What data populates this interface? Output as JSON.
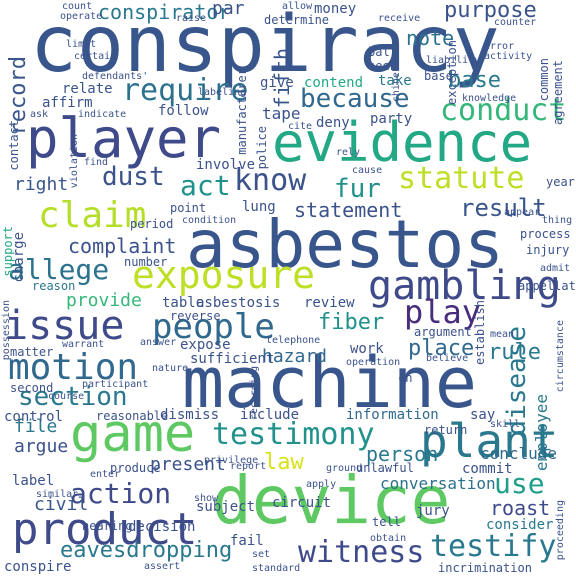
{
  "words": [
    {
      "text": "conspiracy",
      "color": "#39568c"
    },
    {
      "text": "asbestos",
      "color": "#39568c"
    },
    {
      "text": "machine",
      "color": "#39568c"
    },
    {
      "text": "device",
      "color": "#5ec962"
    },
    {
      "text": "evidence",
      "color": "#22a884"
    },
    {
      "text": "player",
      "color": "#3e4a89"
    },
    {
      "text": "game",
      "color": "#5ec962"
    },
    {
      "text": "product",
      "color": "#3e4a89"
    },
    {
      "text": "plant",
      "color": "#2a788e"
    },
    {
      "text": "exposure",
      "color": "#bddf26"
    },
    {
      "text": "gambling",
      "color": "#3e4a89"
    },
    {
      "text": "issue",
      "color": "#3e4a89"
    },
    {
      "text": "people",
      "color": "#31688e"
    },
    {
      "text": "motion",
      "color": "#31688e"
    },
    {
      "text": "claim",
      "color": "#b5de2b"
    },
    {
      "text": "testimony",
      "color": "#21918c"
    },
    {
      "text": "witness",
      "color": "#3e4a89"
    },
    {
      "text": "testify",
      "color": "#2a788e"
    },
    {
      "text": "know",
      "color": "#3b528b"
    },
    {
      "text": "require",
      "color": "#2c728e"
    },
    {
      "text": "conduct",
      "color": "#35b779"
    },
    {
      "text": "statute",
      "color": "#bddf26"
    },
    {
      "text": "because",
      "color": "#31688e"
    },
    {
      "text": "allege",
      "color": "#2c728e"
    },
    {
      "text": "action",
      "color": "#3e4a89"
    },
    {
      "text": "section",
      "color": "#2a788e"
    },
    {
      "text": "play",
      "color": "#472d7b"
    },
    {
      "text": "result",
      "color": "#39568c"
    },
    {
      "text": "record",
      "color": "#39568c"
    },
    {
      "text": "act",
      "color": "#21918c"
    },
    {
      "text": "dust",
      "color": "#3b528b"
    },
    {
      "text": "fur",
      "color": "#21918c"
    },
    {
      "text": "law",
      "color": "#d8e219"
    },
    {
      "text": "rule",
      "color": "#2a788e"
    },
    {
      "text": "fiber",
      "color": "#21918c"
    },
    {
      "text": "disease",
      "color": "#2a788e"
    },
    {
      "text": "use",
      "color": "#1f9e89"
    },
    {
      "text": "roast",
      "color": "#3e4a89"
    },
    {
      "text": "person",
      "color": "#2a788e"
    },
    {
      "text": "place",
      "color": "#31688e"
    },
    {
      "text": "eavesdropping",
      "color": "#2a788e"
    },
    {
      "text": "complaint",
      "color": "#3b528b"
    },
    {
      "text": "provide",
      "color": "#35b779"
    },
    {
      "text": "statement",
      "color": "#3b528b"
    },
    {
      "text": "purpose",
      "color": "#3b528b"
    },
    {
      "text": "conspirator",
      "color": "#2a788e"
    },
    {
      "text": "note",
      "color": "#2c728e"
    },
    {
      "text": "fifth",
      "color": "#39568c"
    },
    {
      "text": "base",
      "color": "#2a788e"
    },
    {
      "text": "present",
      "color": "#3b528b"
    },
    {
      "text": "argue",
      "color": "#3b528b"
    },
    {
      "text": "file",
      "color": "#2a788e"
    },
    {
      "text": "civil",
      "color": "#39568c"
    },
    {
      "text": "hazard",
      "color": "#31688e"
    },
    {
      "text": "employee",
      "color": "#2a788e"
    },
    {
      "text": "conclude",
      "color": "#31688e"
    },
    {
      "text": "consider",
      "color": "#2a788e"
    },
    {
      "text": "conversation",
      "color": "#2c728e"
    },
    {
      "text": "asbestosis",
      "color": "#3b528b"
    },
    {
      "text": "review",
      "color": "#3b528b"
    },
    {
      "text": "tape",
      "color": "#3b528b"
    },
    {
      "text": "deny",
      "color": "#3b528b"
    },
    {
      "text": "party",
      "color": "#3b528b"
    },
    {
      "text": "contend",
      "color": "#22a884"
    },
    {
      "text": "take",
      "color": "#2a788e"
    },
    {
      "text": "right",
      "color": "#39568c"
    },
    {
      "text": "charge",
      "color": "#3b528b"
    },
    {
      "text": "label",
      "color": "#3b528b"
    },
    {
      "text": "circuit",
      "color": "#3b528b"
    },
    {
      "text": "information",
      "color": "#31688e"
    },
    {
      "text": "incrimination",
      "color": "#3b528b"
    },
    {
      "text": "conspire",
      "color": "#3b528b"
    },
    {
      "text": "lung",
      "color": "#3b528b"
    },
    {
      "text": "par",
      "color": "#3b528b"
    },
    {
      "text": "money",
      "color": "#3b528b"
    },
    {
      "text": "determine",
      "color": "#3b528b"
    },
    {
      "text": "involve",
      "color": "#3b528b"
    },
    {
      "text": "follow",
      "color": "#3b528b"
    },
    {
      "text": "affirm",
      "color": "#3b528b"
    },
    {
      "text": "relate",
      "color": "#3b528b"
    },
    {
      "text": "support",
      "color": "#22a884"
    },
    {
      "text": "period",
      "color": "#3b528b"
    },
    {
      "text": "point",
      "color": "#3b528b"
    },
    {
      "text": "reason",
      "color": "#2a788e"
    },
    {
      "text": "matter",
      "color": "#3b528b"
    },
    {
      "text": "second",
      "color": "#3b528b"
    },
    {
      "text": "control",
      "color": "#3b528b"
    },
    {
      "text": "dismiss",
      "color": "#3b528b"
    },
    {
      "text": "include",
      "color": "#3b528b"
    },
    {
      "text": "say",
      "color": "#3b528b"
    },
    {
      "text": "expose",
      "color": "#3b528b"
    },
    {
      "text": "sufficient",
      "color": "#3b528b"
    },
    {
      "text": "table",
      "color": "#3b528b"
    },
    {
      "text": "reverse",
      "color": "#3b528b"
    },
    {
      "text": "work",
      "color": "#3b528b"
    },
    {
      "text": "number",
      "color": "#3b528b"
    },
    {
      "text": "process",
      "color": "#3b528b"
    },
    {
      "text": "injury",
      "color": "#3b528b"
    },
    {
      "text": "year",
      "color": "#3b528b"
    },
    {
      "text": "admit",
      "color": "#3b528b"
    },
    {
      "text": "return",
      "color": "#3b528b"
    },
    {
      "text": "argument",
      "color": "#3b528b"
    },
    {
      "text": "establish",
      "color": "#3b528b"
    },
    {
      "text": "appellate",
      "color": "#3b528b"
    },
    {
      "text": "manufacturer",
      "color": "#3b528b"
    },
    {
      "text": "decision",
      "color": "#3b528b"
    },
    {
      "text": "hearing",
      "color": "#3b528b"
    },
    {
      "text": "subject",
      "color": "#3b528b"
    },
    {
      "text": "fail",
      "color": "#3b528b"
    },
    {
      "text": "jury",
      "color": "#3b528b"
    },
    {
      "text": "tell",
      "color": "#3b528b"
    },
    {
      "text": "commit",
      "color": "#3b528b"
    },
    {
      "text": "unlawful",
      "color": "#3b528b"
    },
    {
      "text": "ground",
      "color": "#3b528b"
    },
    {
      "text": "produce",
      "color": "#3b528b"
    },
    {
      "text": "telephone",
      "color": "#3b528b"
    },
    {
      "text": "operation",
      "color": "#3b528b"
    },
    {
      "text": "ball",
      "color": "#3b528b"
    },
    {
      "text": "seek",
      "color": "#3b528b"
    },
    {
      "text": "give",
      "color": "#3b528b"
    },
    {
      "text": "base",
      "color": "#3b528b"
    },
    {
      "text": "agreement",
      "color": "#3b528b"
    },
    {
      "text": "knowledge",
      "color": "#3b528b"
    },
    {
      "text": "common",
      "color": "#3b528b"
    },
    {
      "text": "counter",
      "color": "#3b528b"
    },
    {
      "text": "count",
      "color": "#3b528b"
    },
    {
      "text": "operate",
      "color": "#3b528b"
    },
    {
      "text": "raise",
      "color": "#3b528b"
    },
    {
      "text": "allow",
      "color": "#3b528b"
    },
    {
      "text": "exception",
      "color": "#3b528b"
    },
    {
      "text": "error",
      "color": "#3b528b"
    },
    {
      "text": "activity",
      "color": "#3b528b"
    },
    {
      "text": "receive",
      "color": "#3b528b"
    },
    {
      "text": "limit",
      "color": "#3b528b"
    },
    {
      "text": "certain",
      "color": "#3b528b"
    },
    {
      "text": "defendants'",
      "color": "#3b528b"
    },
    {
      "text": "labeling",
      "color": "#3b528b"
    },
    {
      "text": "indicate",
      "color": "#3b528b"
    },
    {
      "text": "ask",
      "color": "#3b528b"
    },
    {
      "text": "contact",
      "color": "#3b528b"
    },
    {
      "text": "police",
      "color": "#3b528b"
    },
    {
      "text": "rely",
      "color": "#3b528b"
    },
    {
      "text": "cite",
      "color": "#3b528b"
    },
    {
      "text": "cause",
      "color": "#3b528b"
    },
    {
      "text": "condition",
      "color": "#3b528b"
    },
    {
      "text": "appear",
      "color": "#3b528b"
    },
    {
      "text": "thing",
      "color": "#3b528b"
    },
    {
      "text": "answer",
      "color": "#3b528b"
    },
    {
      "text": "warrant",
      "color": "#3b528b"
    },
    {
      "text": "nature",
      "color": "#3b528b"
    },
    {
      "text": "recording",
      "color": "#3b528b"
    },
    {
      "text": "believe",
      "color": "#3b528b"
    },
    {
      "text": "circumstance",
      "color": "#3b528b"
    },
    {
      "text": "mean",
      "color": "#3b528b"
    },
    {
      "text": "course",
      "color": "#3b528b"
    },
    {
      "text": "participant",
      "color": "#3b528b"
    },
    {
      "text": "reasonable",
      "color": "#3b528b"
    },
    {
      "text": "skill",
      "color": "#3b528b"
    },
    {
      "text": "privilege",
      "color": "#3b528b"
    },
    {
      "text": "report",
      "color": "#3b528b"
    },
    {
      "text": "apply",
      "color": "#3b528b"
    },
    {
      "text": "enter",
      "color": "#3b528b"
    },
    {
      "text": "similar",
      "color": "#3b528b"
    },
    {
      "text": "show",
      "color": "#3b528b"
    },
    {
      "text": "proceeding",
      "color": "#3b528b"
    },
    {
      "text": "obtain",
      "color": "#3b528b"
    },
    {
      "text": "assert",
      "color": "#3b528b"
    },
    {
      "text": "set",
      "color": "#3b528b"
    },
    {
      "text": "standard",
      "color": "#3b528b"
    },
    {
      "text": "liability",
      "color": "#3b528b"
    },
    {
      "text": "chinese",
      "color": "#3b528b"
    },
    {
      "text": "violation",
      "color": "#3b528b"
    },
    {
      "text": "find",
      "color": "#3b528b"
    },
    {
      "text": "possession",
      "color": "#3b528b"
    },
    {
      "text": "ch",
      "color": "#3b528b"
    }
  ]
}
